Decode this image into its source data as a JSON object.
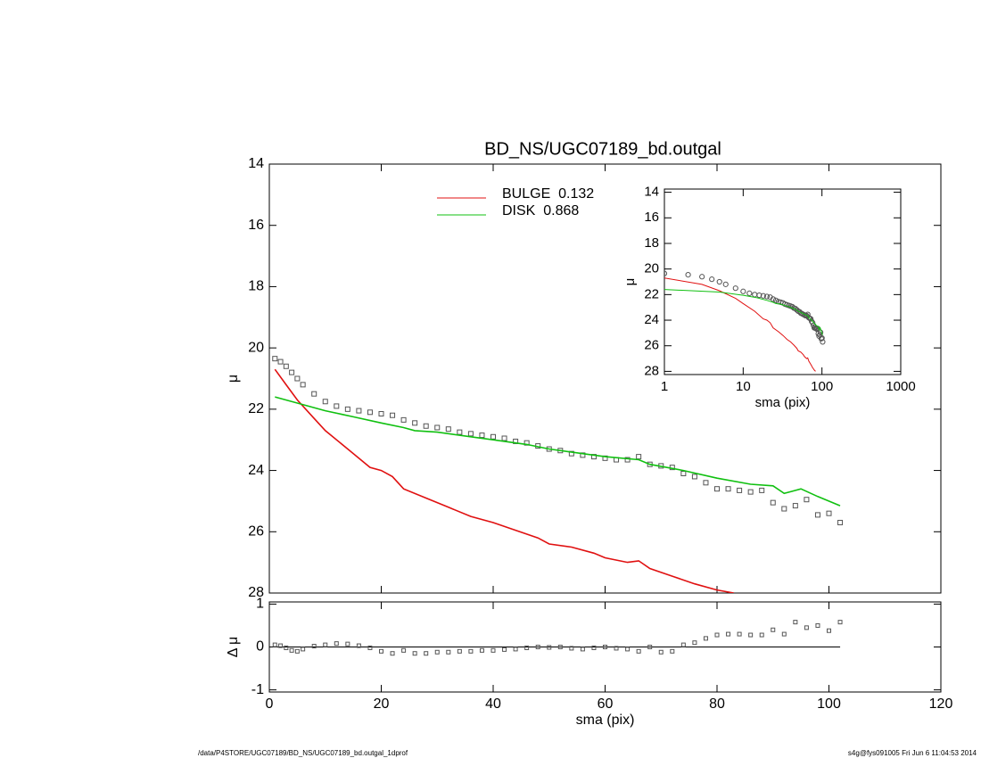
{
  "chart_data": [
    {
      "type": "line",
      "title": "BD_NS/UGC07189_bd.outgal",
      "ylabel": "μ",
      "xlim": [
        0,
        120
      ],
      "ylim": [
        14,
        28
      ],
      "y_reversed": true,
      "yticks": [
        14,
        16,
        18,
        20,
        22,
        24,
        26,
        28
      ],
      "series": [
        {
          "color": "#555555",
          "marker": "square",
          "x": [
            1,
            2,
            3,
            4,
            5,
            6,
            8,
            10,
            12,
            14,
            16,
            18,
            20,
            22,
            24,
            26,
            28,
            30,
            32,
            34,
            36,
            38,
            40,
            42,
            44,
            46,
            48,
            50,
            52,
            54,
            56,
            58,
            60,
            62,
            64,
            66,
            68,
            70,
            72,
            74,
            76,
            78,
            80,
            82,
            84,
            86,
            88,
            90,
            92,
            94,
            96,
            98,
            100,
            102
          ],
          "values": [
            20.35,
            20.45,
            20.6,
            20.8,
            21.0,
            21.2,
            21.5,
            21.75,
            21.9,
            22.0,
            22.05,
            22.1,
            22.15,
            22.2,
            22.35,
            22.45,
            22.55,
            22.6,
            22.65,
            22.75,
            22.8,
            22.85,
            22.9,
            22.95,
            23.05,
            23.1,
            23.2,
            23.3,
            23.35,
            23.45,
            23.5,
            23.55,
            23.6,
            23.65,
            23.65,
            23.55,
            23.8,
            23.85,
            23.9,
            24.1,
            24.2,
            24.4,
            24.6,
            24.6,
            24.65,
            24.7,
            24.65,
            25.05,
            25.25,
            25.15,
            24.95,
            25.45,
            25.4,
            25.7
          ]
        },
        {
          "name": "BULGE  0.132",
          "color": "#e01010",
          "x": [
            1,
            3,
            5,
            8,
            10,
            14,
            18,
            20,
            22,
            24,
            28,
            32,
            36,
            40,
            44,
            48,
            50,
            54,
            58,
            60,
            64,
            66,
            68,
            72,
            76,
            80,
            83
          ],
          "values": [
            20.7,
            21.2,
            21.7,
            22.3,
            22.7,
            23.3,
            23.9,
            24.0,
            24.2,
            24.6,
            24.9,
            25.2,
            25.5,
            25.7,
            25.95,
            26.2,
            26.4,
            26.5,
            26.7,
            26.85,
            27.0,
            26.95,
            27.2,
            27.45,
            27.7,
            27.9,
            28.0
          ]
        },
        {
          "name": "DISK  0.868",
          "color": "#10c010",
          "x": [
            1,
            5,
            10,
            15,
            20,
            24,
            26,
            30,
            36,
            40,
            46,
            50,
            56,
            60,
            66,
            68,
            74,
            80,
            86,
            90,
            92,
            95,
            98,
            102
          ],
          "values": [
            21.6,
            21.8,
            22.05,
            22.25,
            22.45,
            22.6,
            22.7,
            22.75,
            22.9,
            23.0,
            23.15,
            23.3,
            23.45,
            23.55,
            23.65,
            23.8,
            24.0,
            24.25,
            24.45,
            24.5,
            24.75,
            24.6,
            24.85,
            25.15
          ]
        }
      ]
    },
    {
      "type": "line",
      "xlog": true,
      "xlim": [
        1,
        1000
      ],
      "xticks": [
        1,
        10,
        100,
        1000
      ],
      "ylim": [
        13.75,
        28.25
      ],
      "y_reversed": true,
      "yticks": [
        14,
        16,
        18,
        20,
        22,
        24,
        26,
        28
      ],
      "xlabel": "sma (pix)",
      "ylabel": "μ"
    },
    {
      "type": "scatter",
      "ylabel": "Δ μ",
      "xlabel": "sma (pix)",
      "xlim": [
        0,
        120
      ],
      "xticks": [
        0,
        20,
        40,
        60,
        80,
        100,
        120
      ],
      "ylim": [
        -1.05,
        1.05
      ],
      "yticks": [
        -1,
        0,
        1
      ],
      "color": "#555555",
      "values": [
        0.05,
        0.03,
        -0.02,
        -0.08,
        -0.1,
        -0.05,
        0.02,
        0.05,
        0.08,
        0.07,
        0.03,
        -0.02,
        -0.1,
        -0.15,
        -0.08,
        -0.15,
        -0.15,
        -0.12,
        -0.12,
        -0.1,
        -0.1,
        -0.08,
        -0.08,
        -0.06,
        -0.05,
        -0.02,
        0.0,
        -0.01,
        0.0,
        -0.03,
        -0.05,
        -0.02,
        0.0,
        -0.03,
        -0.05,
        -0.1,
        0.0,
        -0.12,
        -0.1,
        0.05,
        0.1,
        0.2,
        0.28,
        0.3,
        0.3,
        0.28,
        0.28,
        0.4,
        0.3,
        0.58,
        0.45,
        0.5,
        0.38,
        0.58
      ]
    }
  ],
  "footer": {
    "left": "/data/P4STORE/UGC07189/BD_NS/UGC07189_bd.outgal_1dprof",
    "right": "s4g@fys091005  Fri Jun  6 11:04:53 2014"
  }
}
